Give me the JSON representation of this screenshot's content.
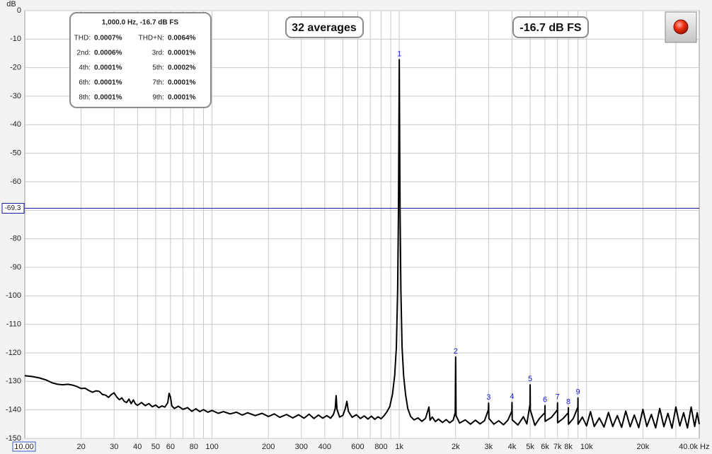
{
  "chart_data": {
    "type": "line",
    "y_axis_label": "dB",
    "x_unit": "Hz",
    "log_x": true,
    "grid": true,
    "color": "#000000",
    "marker_color": "#1a1acc",
    "cursor_color": "#1a1aa0",
    "xlim": [
      10,
      40000
    ],
    "ylim": [
      -150,
      0
    ],
    "xticks": [
      {
        "value": 10,
        "label": "10.00"
      },
      20,
      30,
      40,
      50,
      60,
      80,
      100,
      200,
      300,
      400,
      600,
      800,
      {
        "value": 1000,
        "label": "1k"
      },
      {
        "value": 2000,
        "label": "2k"
      },
      {
        "value": 3000,
        "label": "3k"
      },
      {
        "value": 4000,
        "label": "4k"
      },
      {
        "value": 5000,
        "label": "5k"
      },
      {
        "value": 6000,
        "label": "6k"
      },
      {
        "value": 7000,
        "label": "7k"
      },
      {
        "value": 8000,
        "label": "8k"
      },
      {
        "value": 10000,
        "label": "10k"
      },
      {
        "value": 20000,
        "label": "20k"
      },
      {
        "value": 40000,
        "label": "40.0k"
      }
    ],
    "x_minor_grid": [
      70,
      90,
      500,
      700,
      900,
      9000,
      30000
    ],
    "yticks": [
      0,
      -10,
      -20,
      -30,
      -40,
      -50,
      -60,
      -70,
      -80,
      -90,
      -100,
      -110,
      -120,
      -130,
      -140,
      -150
    ],
    "cursor_level": -69.3,
    "x": [
      10,
      11,
      12,
      13,
      14,
      15,
      16,
      17,
      18,
      19,
      20,
      21,
      22,
      23,
      24,
      25,
      26,
      27,
      28,
      29,
      30,
      31,
      32,
      33,
      34,
      35,
      36,
      37,
      38,
      39,
      40,
      42,
      44,
      46,
      48,
      50,
      52,
      54,
      56,
      58,
      59,
      60,
      61,
      63,
      66,
      70,
      74,
      78,
      82,
      86,
      90,
      95,
      100,
      108,
      115,
      125,
      135,
      145,
      155,
      170,
      185,
      200,
      215,
      230,
      250,
      270,
      290,
      310,
      330,
      350,
      370,
      390,
      410,
      430,
      445,
      455,
      460,
      465,
      480,
      500,
      515,
      525,
      535,
      560,
      590,
      620,
      650,
      680,
      710,
      740,
      770,
      800,
      830,
      860,
      890,
      920,
      945,
      965,
      980,
      990,
      995,
      1000,
      1005,
      1010,
      1020,
      1035,
      1055,
      1080,
      1110,
      1150,
      1200,
      1260,
      1320,
      1380,
      1440,
      1460,
      1500,
      1560,
      1620,
      1700,
      1780,
      1860,
      1940,
      1990,
      2000,
      2010,
      2100,
      2250,
      2400,
      2550,
      2700,
      2850,
      2990,
      3000,
      3010,
      3200,
      3400,
      3600,
      3800,
      3990,
      4000,
      4010,
      4300,
      4600,
      4800,
      4990,
      5000,
      5010,
      5300,
      5600,
      5990,
      6000,
      6010,
      6500,
      6990,
      7000,
      7010,
      7500,
      7990,
      8000,
      8010,
      8500,
      8990,
      9000,
      9010,
      9500,
      10000,
      10500,
      11000,
      11700,
      12400,
      13100,
      13800,
      14600,
      15400,
      16200,
      17100,
      18000,
      19000,
      20000,
      21000,
      22200,
      23400,
      24600,
      25900,
      27200,
      28600,
      30000,
      31500,
      33000,
      34600,
      36200,
      37800,
      39000,
      40000
    ],
    "values": [
      -128,
      -128.3,
      -128.8,
      -129.5,
      -130.5,
      -131,
      -131.2,
      -131,
      -131.3,
      -131.8,
      -132.5,
      -132.4,
      -133.2,
      -133.8,
      -133.3,
      -133.5,
      -134.6,
      -134.8,
      -135.6,
      -134.6,
      -134,
      -135.5,
      -136.4,
      -135.8,
      -137,
      -137.4,
      -136.2,
      -137.8,
      -136.5,
      -137.9,
      -138.4,
      -137.4,
      -138.5,
      -137.8,
      -138.9,
      -138.3,
      -139.2,
      -138.6,
      -139,
      -137.5,
      -134.2,
      -135.5,
      -138.6,
      -139.5,
      -138.7,
      -139.8,
      -139.2,
      -140.5,
      -139.6,
      -140.6,
      -139.9,
      -140.8,
      -140.2,
      -141.2,
      -140.6,
      -141.4,
      -140.8,
      -141.8,
      -141,
      -142,
      -141.2,
      -142.3,
      -141.4,
      -142.6,
      -141.6,
      -142.8,
      -141.7,
      -142.9,
      -141.5,
      -143,
      -141.8,
      -142.9,
      -142,
      -142.9,
      -141.6,
      -139.5,
      -135,
      -139.8,
      -142.5,
      -141.9,
      -139.5,
      -137,
      -140.5,
      -142.6,
      -141.7,
      -143,
      -142.1,
      -143.2,
      -142.2,
      -143.3,
      -142.4,
      -143.1,
      -142,
      -140.6,
      -138.8,
      -134.5,
      -128,
      -118,
      -98,
      -70,
      -45,
      -17.2,
      -45,
      -70,
      -98,
      -118,
      -128,
      -134.5,
      -139.5,
      -142.3,
      -143.5,
      -142.8,
      -144,
      -143,
      -139,
      -143.6,
      -142.5,
      -144.1,
      -143.2,
      -144.4,
      -143.4,
      -144.5,
      -143.6,
      -141,
      -121.5,
      -142,
      -144.6,
      -143.5,
      -145,
      -143.6,
      -144.9,
      -143.8,
      -140,
      -137.6,
      -143,
      -145,
      -143.8,
      -145.2,
      -143.6,
      -140.5,
      -137.4,
      -143.5,
      -145.3,
      -142.4,
      -144.9,
      -138,
      -131.2,
      -140,
      -145.4,
      -143,
      -141,
      -138.5,
      -144,
      -142.6,
      -140,
      -137.5,
      -144.5,
      -143,
      -141,
      -139.2,
      -145,
      -143,
      -139,
      -135.8,
      -145,
      -142.5,
      -145.6,
      -140.6,
      -145.8,
      -142.8,
      -146,
      -140.9,
      -145.8,
      -142,
      -146.1,
      -140.4,
      -145.9,
      -141.8,
      -146.2,
      -139.8,
      -145.8,
      -141.6,
      -146.3,
      -139.5,
      -145.9,
      -141.2,
      -146.4,
      -139,
      -145.6,
      -141,
      -146.3,
      -139,
      -145.8,
      -141,
      -145
    ],
    "harmonic_markers": [
      {
        "label": "1",
        "x": 1000,
        "level": -17.2
      },
      {
        "label": "2",
        "x": 2000,
        "level": -121.5
      },
      {
        "label": "3",
        "x": 3000,
        "level": -137.6
      },
      {
        "label": "4",
        "x": 4000,
        "level": -137.4
      },
      {
        "label": "5",
        "x": 5000,
        "level": -131.2
      },
      {
        "label": "6",
        "x": 6000,
        "level": -138.5
      },
      {
        "label": "7",
        "x": 7000,
        "level": -137.5
      },
      {
        "label": "8",
        "x": 8000,
        "level": -139.2
      },
      {
        "label": "9",
        "x": 9000,
        "level": -135.8
      }
    ]
  },
  "overlay": {
    "thd_box": {
      "title": "1,000.0 Hz, -16.7 dB FS",
      "rows": [
        [
          "THD:",
          "0.0007%",
          "THD+N:",
          "0.0064%"
        ],
        [
          "2nd:",
          "0.0006%",
          "3rd:",
          "0.0001%"
        ],
        [
          "4th:",
          "0.0001%",
          "5th:",
          "0.0002%"
        ],
        [
          "6th:",
          "0.0001%",
          "7th:",
          "0.0001%"
        ],
        [
          "8th:",
          "0.0001%",
          "9th:",
          "0.0001%"
        ]
      ]
    },
    "averages": "32 averages",
    "level": "-16.7 dB FS"
  }
}
